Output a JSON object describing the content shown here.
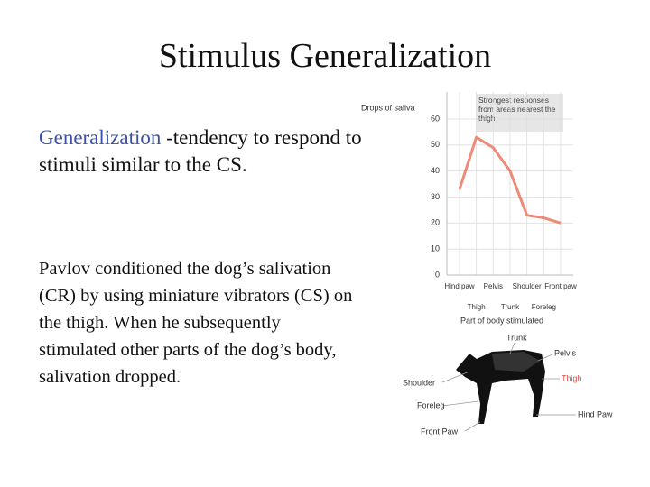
{
  "title": "Stimulus Generalization",
  "body": {
    "term": "Generalization",
    "definition": "-tendency to respond to stimuli similar to the CS.",
    "paragraph": "Pavlov conditioned the dog’s salivation (CR) by using miniature vibrators (CS) on the thigh. When he subsequently stimulated other parts of the dog’s body, salivation dropped."
  },
  "chart_data": {
    "type": "line",
    "ylabel": "Drops of saliva",
    "xlabel": "Part of body stimulated",
    "annotation": "Strongest responses from areas nearest the thigh",
    "categories": [
      "Hind paw",
      "Thigh",
      "Pelvis",
      "Trunk",
      "Shoulder",
      "Foreleg",
      "Front paw"
    ],
    "values": [
      33,
      53,
      49,
      40,
      23,
      22,
      20
    ],
    "color": "#ef8a78",
    "ylim": [
      0,
      60
    ],
    "yticks": [
      0,
      10,
      20,
      30,
      40,
      50,
      60
    ],
    "grid": true
  },
  "diagram": {
    "labels": [
      "Trunk",
      "Pelvis",
      "Thigh",
      "Shoulder",
      "Foreleg",
      "Hind Paw",
      "Front Paw"
    ]
  }
}
